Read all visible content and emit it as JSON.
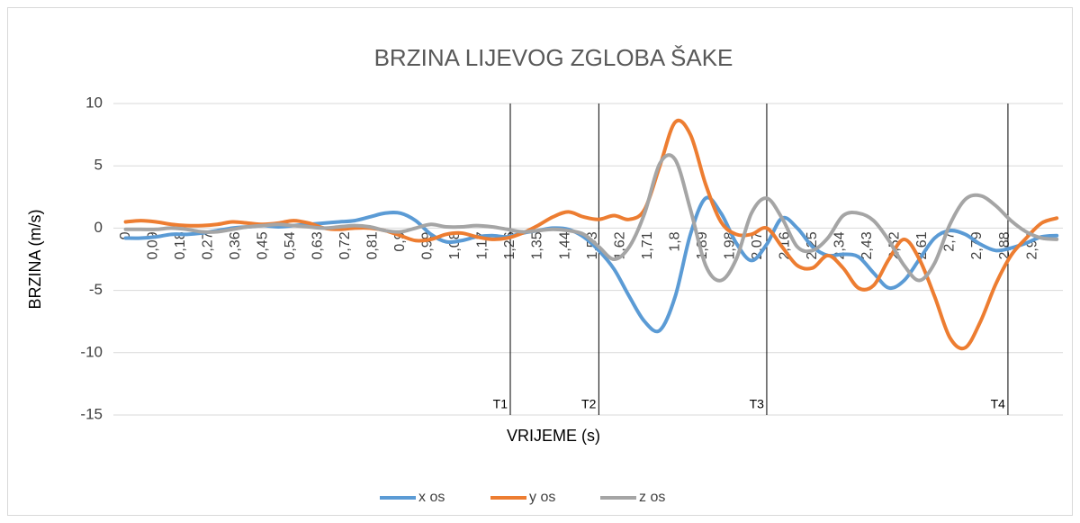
{
  "chart_data": {
    "type": "line",
    "title": "BRZINA LIJEVOG ZGLOBA ŠAKE",
    "xlabel": "VRIJEME (s)",
    "ylabel": "BRZINA (m/s)",
    "x": [
      0,
      0.05,
      0.1,
      0.15,
      0.2,
      0.25,
      0.3,
      0.35,
      0.4,
      0.45,
      0.5,
      0.55,
      0.6,
      0.65,
      0.7,
      0.75,
      0.8,
      0.85,
      0.9,
      0.95,
      1.0,
      1.05,
      1.1,
      1.15,
      1.2,
      1.25,
      1.3,
      1.35,
      1.4,
      1.45,
      1.5,
      1.55,
      1.6,
      1.65,
      1.7,
      1.75,
      1.8,
      1.85,
      1.9,
      1.95,
      2.0,
      2.05,
      2.1,
      2.15,
      2.2,
      2.25,
      2.3,
      2.35,
      2.4,
      2.45,
      2.5,
      2.55,
      2.6,
      2.65,
      2.7,
      2.75,
      2.8,
      2.85,
      2.9,
      2.95,
      3.0,
      3.05
    ],
    "series": [
      {
        "name": "x os",
        "color": "#5b9bd5",
        "values": [
          -0.8,
          -0.8,
          -0.7,
          -0.5,
          -0.5,
          -0.4,
          -0.2,
          0,
          0.1,
          0.2,
          0.1,
          0.2,
          0.3,
          0.4,
          0.5,
          0.6,
          0.9,
          1.2,
          1.2,
          0.6,
          -0.5,
          -1.1,
          -1.0,
          -0.7,
          -0.6,
          -0.7,
          -0.4,
          -0.2,
          0,
          -0.1,
          -0.7,
          -1.8,
          -3.3,
          -5.5,
          -7.5,
          -8.2,
          -5.5,
          -0.5,
          2.4,
          1.2,
          -1.2,
          -2.6,
          -1.3,
          0.8,
          0,
          -1.5,
          -2.2,
          -2.1,
          -2.3,
          -3.6,
          -4.8,
          -4.2,
          -2.5,
          -0.8,
          -0.2,
          -0.5,
          -1.3,
          -1.8,
          -1.6,
          -1.2,
          -0.7,
          -0.6
        ]
      },
      {
        "name": "y os",
        "color": "#ed7d31",
        "values": [
          0.5,
          0.6,
          0.5,
          0.3,
          0.2,
          0.2,
          0.3,
          0.5,
          0.4,
          0.3,
          0.4,
          0.6,
          0.4,
          0,
          -0.1,
          0,
          0,
          -0.2,
          -0.6,
          -1,
          -0.9,
          -0.5,
          -0.4,
          -0.7,
          -0.9,
          -0.8,
          -0.4,
          0.2,
          0.9,
          1.3,
          0.9,
          0.7,
          1.0,
          0.7,
          1.5,
          5,
          8.5,
          7.5,
          3.5,
          0.5,
          -0.5,
          -0.5,
          0,
          -1.5,
          -3.0,
          -3.2,
          -2.2,
          -3.2,
          -4.8,
          -4.6,
          -2.5,
          -0.9,
          -2.5,
          -5.5,
          -8.8,
          -9.6,
          -7.5,
          -4.5,
          -2.2,
          -0.8,
          0.4,
          0.8
        ]
      },
      {
        "name": "z os",
        "color": "#a5a5a5",
        "values": [
          -0.1,
          -0.1,
          -0.1,
          0,
          -0.1,
          -0.3,
          -0.3,
          -0.1,
          0.1,
          0.2,
          0.3,
          0.2,
          0.1,
          0,
          0.1,
          0.2,
          0.1,
          -0.2,
          -0.3,
          0,
          0.3,
          0.1,
          0.1,
          0.2,
          0.1,
          -0.1,
          -0.3,
          -0.2,
          -0.1,
          -0.2,
          -0.5,
          -1.5,
          -2.5,
          -1.5,
          1.2,
          5.2,
          5.5,
          1.5,
          -3.0,
          -4.2,
          -2.5,
          1.2,
          2.4,
          0.8,
          -1.5,
          -1.8,
          -0.8,
          1.0,
          1.2,
          0.6,
          -1.0,
          -3.0,
          -4.2,
          -2.8,
          0.3,
          2.3,
          2.6,
          1.8,
          0.6,
          -0.3,
          -0.8,
          -0.9
        ]
      }
    ],
    "xlim": [
      -0.04,
      3.07
    ],
    "xticks": [
      0,
      {
        "value": 0.09,
        "label": "0,09"
      },
      {
        "value": 0.18,
        "label": "0,18"
      },
      {
        "value": 0.27,
        "label": "0,27"
      },
      {
        "value": 0.36,
        "label": "0,36"
      },
      {
        "value": 0.45,
        "label": "0,45"
      },
      {
        "value": 0.54,
        "label": "0,54"
      },
      {
        "value": 0.63,
        "label": "0,63"
      },
      {
        "value": 0.72,
        "label": "0,72"
      },
      {
        "value": 0.81,
        "label": "0,81"
      },
      {
        "value": 0.9,
        "label": "0,9"
      },
      {
        "value": 0.99,
        "label": "0,99"
      },
      {
        "value": 1.08,
        "label": "1,08"
      },
      {
        "value": 1.17,
        "label": "1,17"
      },
      {
        "value": 1.26,
        "label": "1,26"
      },
      {
        "value": 1.35,
        "label": "1,35"
      },
      {
        "value": 1.44,
        "label": "1,44"
      },
      {
        "value": 1.53,
        "label": "1,53"
      },
      {
        "value": 1.62,
        "label": "1,62"
      },
      {
        "value": 1.71,
        "label": "1,71"
      },
      {
        "value": 1.8,
        "label": "1,8"
      },
      {
        "value": 1.89,
        "label": "1,89"
      },
      {
        "value": 1.98,
        "label": "1,98"
      },
      {
        "value": 2.07,
        "label": "2,07"
      },
      {
        "value": 2.16,
        "label": "2,16"
      },
      {
        "value": 2.25,
        "label": "2,25"
      },
      {
        "value": 2.34,
        "label": "2,34"
      },
      {
        "value": 2.43,
        "label": "2,43"
      },
      {
        "value": 2.52,
        "label": "2,52"
      },
      {
        "value": 2.61,
        "label": "2,61"
      },
      {
        "value": 2.7,
        "label": "2,7"
      },
      {
        "value": 2.79,
        "label": "2,79"
      },
      {
        "value": 2.88,
        "label": "2,88"
      },
      {
        "value": 2.97,
        "label": "2,97"
      }
    ],
    "ylim": [
      -15,
      10
    ],
    "yticks": [
      -15,
      -10,
      -5,
      0,
      5,
      10
    ],
    "grid": true,
    "legend": "bottom",
    "markers": [
      {
        "label": "T1",
        "x": 1.26
      },
      {
        "label": "T2",
        "x": 1.55
      },
      {
        "label": "T3",
        "x": 2.1
      },
      {
        "label": "T4",
        "x": 2.89
      }
    ]
  }
}
